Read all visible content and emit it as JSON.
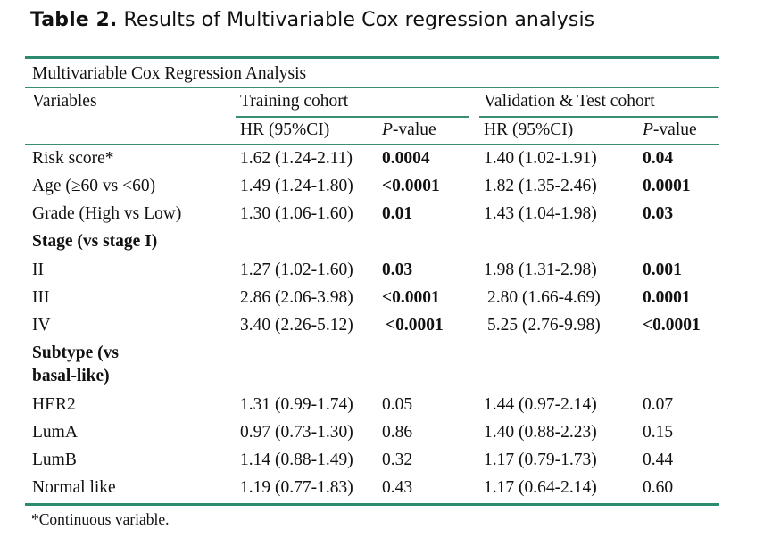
{
  "caption": {
    "label": "Table 2.",
    "title": "Results of Multivariable Cox regression analysis"
  },
  "table": {
    "span_header": "Multivariable Cox Regression Analysis",
    "col_variables": "Variables",
    "group_training": "Training cohort",
    "group_validation": "Validation & Test cohort",
    "sub_hr": "HR (95%CI)",
    "sub_p_italic": "P",
    "sub_p_rest": "-value",
    "rows": [
      {
        "variable": "Risk score*",
        "train_hr": "1.62 (1.24-2.11)",
        "train_p": "0.0004",
        "val_hr": "1.40 (1.02-1.91)",
        "val_p": "0.04"
      },
      {
        "variable": "Age (≥60 vs <60)",
        "train_hr": "1.49 (1.24-1.80)",
        "train_p": "<0.0001",
        "val_hr": "1.82 (1.35-2.46)",
        "val_p": "0.0001"
      },
      {
        "variable": "Grade (High vs Low)",
        "train_hr": "1.30 (1.06-1.60)",
        "train_p": "0.01",
        "val_hr": "1.43 (1.04-1.98)",
        "val_p": "0.03"
      },
      {
        "variable": "Stage (vs stage I)"
      },
      {
        "variable": "II",
        "train_hr": "1.27 (1.02-1.60)",
        "train_p": "0.03",
        "val_hr": "1.98 (1.31-2.98)",
        "val_p": "0.001"
      },
      {
        "variable": "III",
        "train_hr": "2.86 (2.06-3.98)",
        "train_p": "<0.0001",
        "val_hr": "2.80 (1.66-4.69)",
        "val_p": "0.0001"
      },
      {
        "variable": "IV",
        "train_hr": "3.40 (2.26-5.12)",
        "train_p": "<0.0001",
        "val_hr": "5.25 (2.76-9.98)",
        "val_p": "<0.0001"
      },
      {
        "variable": "Subtype (vs",
        "variable_line2": "basal-like)"
      },
      {
        "variable": "HER2",
        "train_hr": "1.31 (0.99-1.74)",
        "train_p": "0.05",
        "val_hr": "1.44 (0.97-2.14)",
        "val_p": "0.07"
      },
      {
        "variable": "LumA",
        "train_hr": "0.97 (0.73-1.30)",
        "train_p": "0.86",
        "val_hr": "1.40 (0.88-2.23)",
        "val_p": "0.15"
      },
      {
        "variable": "LumB",
        "train_hr": "1.14 (0.88-1.49)",
        "train_p": "0.32",
        "val_hr": "1.17 (0.79-1.73)",
        "val_p": "0.44"
      },
      {
        "variable": "Normal like",
        "train_hr": "1.19 (0.77-1.83)",
        "train_p": "0.43",
        "val_hr": "1.17 (0.64-2.14)",
        "val_p": "0.60"
      }
    ]
  },
  "footnote": "*Continuous variable.",
  "colors": {
    "rule": "#2e8a6e",
    "text": "#111111"
  }
}
